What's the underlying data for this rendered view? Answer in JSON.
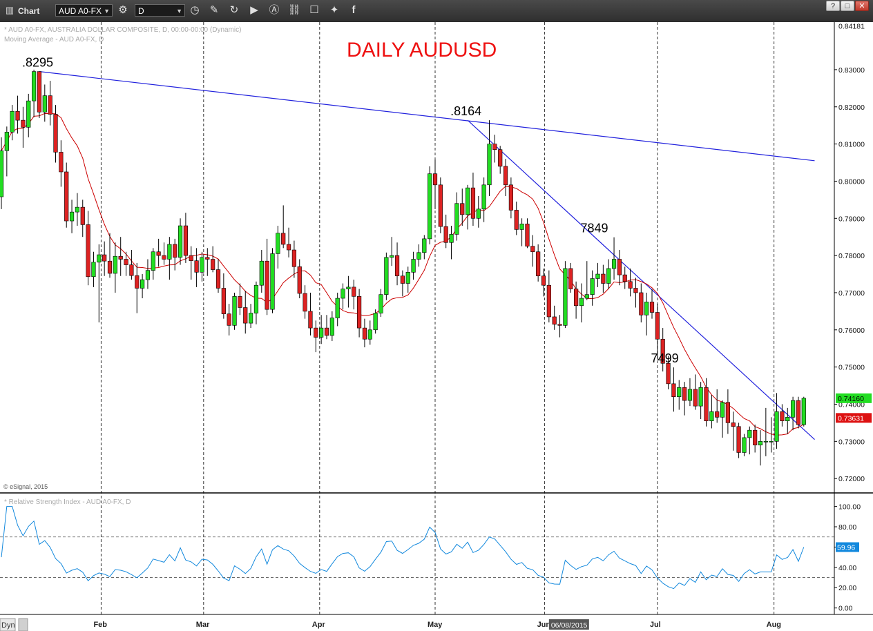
{
  "toolbar": {
    "app_label": "Chart",
    "symbol_value": "AUD A0-FX",
    "interval_value": "D",
    "window_buttons": [
      "?",
      "□",
      "✕"
    ]
  },
  "chart_data": [
    {
      "type": "candlestick",
      "title": "DAILY AUDUSD",
      "legend_lines": [
        "* AUD A0-FX, AUSTRALIA DOLLAR COMPOSITE, D, 00:00-00:00 (Dynamic)",
        "Moving Average - AUD A0-FX, D"
      ],
      "copyright": "© eSignal, 2015",
      "x_tick_labels": [
        "Feb",
        "Mar",
        "Apr",
        "May",
        "Jun",
        "Jul",
        "Aug"
      ],
      "cursor_date_label": "06/08/2015",
      "ylim": [
        0.7165,
        0.8428
      ],
      "y_ticks": [
        0.72,
        0.73,
        0.74,
        0.75,
        0.76,
        0.77,
        0.78,
        0.79,
        0.8,
        0.81,
        0.82,
        0.83
      ],
      "y_tick_labels": [
        "0.72000",
        "0.73000",
        "0.74000",
        "0.75000",
        "0.76000",
        "0.77000",
        "0.78000",
        "0.79000",
        "0.80000",
        "0.81000",
        "0.82000",
        "0.83000"
      ],
      "top_price_label": "0.84181",
      "top_price": 0.84181,
      "last_price_label": "0.74160",
      "last_price": 0.7416,
      "ma_last_label": "0.73631",
      "ma_last": 0.73631,
      "colors": {
        "up": "#22dd22",
        "down": "#dd2222",
        "ma": "#cc0000",
        "trendline": "#2222dd",
        "annotation": "#000000",
        "title": "#ee1111"
      },
      "annotations": [
        {
          "text": ".8295",
          "bar": 7,
          "price": 0.8295
        },
        {
          "text": ".8164",
          "bar": 86,
          "price": 0.8164
        },
        {
          "text": "7849",
          "bar": 110,
          "price": 0.7849
        },
        {
          "text": "7499",
          "bar": 123,
          "price": 0.7499
        }
      ],
      "trendlines": [
        {
          "from": {
            "bar": 7,
            "price": 0.8295
          },
          "to": {
            "bar": 150,
            "price": 0.8055
          }
        },
        {
          "from": {
            "bar": 86,
            "price": 0.8164
          },
          "to": {
            "bar": 150,
            "price": 0.7305
          }
        }
      ],
      "candles_ohlc": [
        [
          0.7958,
          0.8118,
          0.7925,
          0.8082
        ],
        [
          0.8082,
          0.8147,
          0.8013,
          0.8132
        ],
        [
          0.8132,
          0.8205,
          0.811,
          0.8188
        ],
        [
          0.8188,
          0.823,
          0.8128,
          0.8164
        ],
        [
          0.8164,
          0.82,
          0.809,
          0.8145
        ],
        [
          0.8145,
          0.8235,
          0.8118,
          0.8216
        ],
        [
          0.8216,
          0.83,
          0.8172,
          0.8295
        ],
        [
          0.8295,
          0.8295,
          0.817,
          0.8186
        ],
        [
          0.8186,
          0.826,
          0.816,
          0.823
        ],
        [
          0.823,
          0.827,
          0.815,
          0.818
        ],
        [
          0.818,
          0.8205,
          0.805,
          0.8078
        ],
        [
          0.8078,
          0.811,
          0.7985,
          0.8025
        ],
        [
          0.8025,
          0.805,
          0.7875,
          0.7893
        ],
        [
          0.7893,
          0.795,
          0.786,
          0.7917
        ],
        [
          0.7917,
          0.7968,
          0.788,
          0.793
        ],
        [
          0.793,
          0.795,
          0.785,
          0.7883
        ],
        [
          0.7883,
          0.792,
          0.772,
          0.7743
        ],
        [
          0.7743,
          0.781,
          0.7715,
          0.7782
        ],
        [
          0.7782,
          0.783,
          0.762,
          0.7802
        ],
        [
          0.7802,
          0.7838,
          0.7745,
          0.7785
        ],
        [
          0.7785,
          0.786,
          0.774,
          0.7752
        ],
        [
          0.7752,
          0.7835,
          0.77,
          0.7798
        ],
        [
          0.7798,
          0.785,
          0.7745,
          0.779
        ],
        [
          0.779,
          0.781,
          0.7745,
          0.7775
        ],
        [
          0.7775,
          0.7815,
          0.7735,
          0.7746
        ],
        [
          0.7746,
          0.778,
          0.7645,
          0.7712
        ],
        [
          0.7712,
          0.775,
          0.7685,
          0.7735
        ],
        [
          0.7735,
          0.779,
          0.771,
          0.776
        ],
        [
          0.776,
          0.782,
          0.7735,
          0.781
        ],
        [
          0.781,
          0.7845,
          0.777,
          0.78
        ],
        [
          0.78,
          0.7835,
          0.7775,
          0.779
        ],
        [
          0.779,
          0.785,
          0.7735,
          0.783
        ],
        [
          0.783,
          0.7845,
          0.776,
          0.7795
        ],
        [
          0.7795,
          0.79,
          0.7775,
          0.788
        ],
        [
          0.788,
          0.7915,
          0.778,
          0.78
        ],
        [
          0.78,
          0.7825,
          0.7735,
          0.7786
        ],
        [
          0.7786,
          0.782,
          0.7715,
          0.7755
        ],
        [
          0.7755,
          0.781,
          0.773,
          0.7795
        ],
        [
          0.7795,
          0.782,
          0.7745,
          0.779
        ],
        [
          0.779,
          0.7825,
          0.7755,
          0.7762
        ],
        [
          0.7762,
          0.779,
          0.77,
          0.7712
        ],
        [
          0.7712,
          0.7752,
          0.763,
          0.7643
        ],
        [
          0.7643,
          0.767,
          0.7585,
          0.7612
        ],
        [
          0.7612,
          0.77,
          0.76,
          0.769
        ],
        [
          0.769,
          0.7725,
          0.764,
          0.766
        ],
        [
          0.766,
          0.7705,
          0.759,
          0.7618
        ],
        [
          0.7618,
          0.767,
          0.7605,
          0.7645
        ],
        [
          0.7645,
          0.773,
          0.7615,
          0.772
        ],
        [
          0.772,
          0.7815,
          0.77,
          0.7785
        ],
        [
          0.7785,
          0.7845,
          0.764,
          0.7655
        ],
        [
          0.7655,
          0.782,
          0.7645,
          0.7805
        ],
        [
          0.7805,
          0.788,
          0.7765,
          0.786
        ],
        [
          0.786,
          0.7935,
          0.782,
          0.783
        ],
        [
          0.783,
          0.7875,
          0.7795,
          0.7815
        ],
        [
          0.7815,
          0.784,
          0.774,
          0.777
        ],
        [
          0.777,
          0.779,
          0.7685,
          0.7698
        ],
        [
          0.7698,
          0.772,
          0.763,
          0.765
        ],
        [
          0.765,
          0.77,
          0.7585,
          0.7605
        ],
        [
          0.7605,
          0.7625,
          0.754,
          0.758
        ],
        [
          0.758,
          0.764,
          0.7562,
          0.7605
        ],
        [
          0.7605,
          0.764,
          0.7575,
          0.7585
        ],
        [
          0.7585,
          0.765,
          0.757,
          0.7632
        ],
        [
          0.7632,
          0.77,
          0.761,
          0.7685
        ],
        [
          0.7685,
          0.7725,
          0.7655,
          0.771
        ],
        [
          0.771,
          0.7745,
          0.766,
          0.7715
        ],
        [
          0.7715,
          0.7735,
          0.7655,
          0.769
        ],
        [
          0.769,
          0.771,
          0.758,
          0.7605
        ],
        [
          0.7605,
          0.763,
          0.7553,
          0.7575
        ],
        [
          0.7575,
          0.7625,
          0.756,
          0.76
        ],
        [
          0.76,
          0.7655,
          0.759,
          0.7645
        ],
        [
          0.7645,
          0.771,
          0.7635,
          0.7695
        ],
        [
          0.7695,
          0.7808,
          0.768,
          0.7795
        ],
        [
          0.7795,
          0.785,
          0.7772,
          0.78
        ],
        [
          0.78,
          0.7835,
          0.772,
          0.7745
        ],
        [
          0.7745,
          0.776,
          0.769,
          0.7725
        ],
        [
          0.7725,
          0.777,
          0.77,
          0.7755
        ],
        [
          0.7755,
          0.781,
          0.7735,
          0.779
        ],
        [
          0.779,
          0.783,
          0.777,
          0.7808
        ],
        [
          0.7808,
          0.7855,
          0.779,
          0.7845
        ],
        [
          0.7845,
          0.804,
          0.783,
          0.802
        ],
        [
          0.802,
          0.8058,
          0.7925,
          0.799
        ],
        [
          0.799,
          0.801,
          0.786,
          0.7878
        ],
        [
          0.7878,
          0.791,
          0.782,
          0.7835
        ],
        [
          0.7835,
          0.788,
          0.779,
          0.7857
        ],
        [
          0.7857,
          0.797,
          0.784,
          0.794
        ],
        [
          0.794,
          0.798,
          0.788,
          0.791
        ],
        [
          0.791,
          0.799,
          0.787,
          0.7982
        ],
        [
          0.7982,
          0.8023,
          0.788,
          0.79
        ],
        [
          0.79,
          0.796,
          0.7875,
          0.7925
        ],
        [
          0.7925,
          0.801,
          0.789,
          0.799
        ],
        [
          0.799,
          0.8164,
          0.796,
          0.81
        ],
        [
          0.81,
          0.8125,
          0.805,
          0.8085
        ],
        [
          0.8085,
          0.8095,
          0.802,
          0.804
        ],
        [
          0.804,
          0.806,
          0.796,
          0.799
        ],
        [
          0.799,
          0.801,
          0.79,
          0.7922
        ],
        [
          0.7922,
          0.7945,
          0.7855,
          0.787
        ],
        [
          0.787,
          0.79,
          0.7825,
          0.7885
        ],
        [
          0.7885,
          0.79,
          0.782,
          0.7825
        ],
        [
          0.7825,
          0.7855,
          0.777,
          0.781
        ],
        [
          0.781,
          0.783,
          0.773,
          0.7745
        ],
        [
          0.7745,
          0.7765,
          0.769,
          0.772
        ],
        [
          0.772,
          0.776,
          0.762,
          0.7635
        ],
        [
          0.7635,
          0.7665,
          0.76,
          0.7615
        ],
        [
          0.7615,
          0.764,
          0.758,
          0.7612
        ],
        [
          0.7612,
          0.7785,
          0.7605,
          0.7765
        ],
        [
          0.7765,
          0.778,
          0.77,
          0.771
        ],
        [
          0.771,
          0.773,
          0.763,
          0.7665
        ],
        [
          0.7665,
          0.7725,
          0.762,
          0.7685
        ],
        [
          0.7685,
          0.7785,
          0.768,
          0.7695
        ],
        [
          0.7695,
          0.776,
          0.7665,
          0.7738
        ],
        [
          0.7738,
          0.778,
          0.7715,
          0.775
        ],
        [
          0.775,
          0.7775,
          0.77,
          0.7725
        ],
        [
          0.7725,
          0.779,
          0.771,
          0.7765
        ],
        [
          0.7765,
          0.7849,
          0.7735,
          0.779
        ],
        [
          0.779,
          0.7815,
          0.772,
          0.7748
        ],
        [
          0.7748,
          0.777,
          0.771,
          0.773
        ],
        [
          0.773,
          0.7765,
          0.769,
          0.7712
        ],
        [
          0.7712,
          0.774,
          0.766,
          0.77
        ],
        [
          0.77,
          0.7725,
          0.762,
          0.764
        ],
        [
          0.764,
          0.77,
          0.7585,
          0.7675
        ],
        [
          0.7675,
          0.771,
          0.763,
          0.7647
        ],
        [
          0.7647,
          0.767,
          0.752,
          0.7575
        ],
        [
          0.7575,
          0.7605,
          0.7488,
          0.751
        ],
        [
          0.751,
          0.753,
          0.744,
          0.7455
        ],
        [
          0.7455,
          0.7499,
          0.738,
          0.742
        ],
        [
          0.742,
          0.7465,
          0.7385,
          0.7445
        ],
        [
          0.7445,
          0.746,
          0.737,
          0.741
        ],
        [
          0.741,
          0.747,
          0.7395,
          0.744
        ],
        [
          0.744,
          0.748,
          0.7385,
          0.7395
        ],
        [
          0.7395,
          0.746,
          0.736,
          0.7445
        ],
        [
          0.7445,
          0.747,
          0.734,
          0.7355
        ],
        [
          0.7355,
          0.7425,
          0.7335,
          0.738
        ],
        [
          0.738,
          0.744,
          0.735,
          0.7365
        ],
        [
          0.7365,
          0.741,
          0.731,
          0.7405
        ],
        [
          0.7405,
          0.744,
          0.732,
          0.735
        ],
        [
          0.735,
          0.738,
          0.7275,
          0.734
        ],
        [
          0.734,
          0.735,
          0.7255,
          0.727
        ],
        [
          0.727,
          0.732,
          0.726,
          0.731
        ],
        [
          0.731,
          0.734,
          0.7265,
          0.733
        ],
        [
          0.733,
          0.7345,
          0.727,
          0.729
        ],
        [
          0.729,
          0.733,
          0.7235,
          0.73
        ],
        [
          0.73,
          0.739,
          0.726,
          0.73
        ],
        [
          0.73,
          0.7365,
          0.727,
          0.73
        ],
        [
          0.73,
          0.743,
          0.728,
          0.738
        ],
        [
          0.738,
          0.74,
          0.734,
          0.7355
        ],
        [
          0.7355,
          0.739,
          0.732,
          0.7365
        ],
        [
          0.7365,
          0.742,
          0.733,
          0.741
        ],
        [
          0.741,
          0.742,
          0.7335,
          0.7345
        ],
        [
          0.7345,
          0.742,
          0.734,
          0.7416
        ]
      ]
    },
    {
      "type": "line",
      "title": "* Relative Strength Index - AUD A0-FX, D",
      "ylim": [
        -5,
        112
      ],
      "y_ticks": [
        0,
        20,
        40,
        60,
        80,
        100
      ],
      "y_tick_labels": [
        "0.00",
        "20.00",
        "40.00",
        "60.00",
        "80.00",
        "100.00"
      ],
      "levels": [
        70,
        30
      ],
      "last_value": 59.96,
      "last_label": "59.96",
      "color": "#1188dd"
    }
  ],
  "footer": {
    "left_label": "Dyn"
  }
}
